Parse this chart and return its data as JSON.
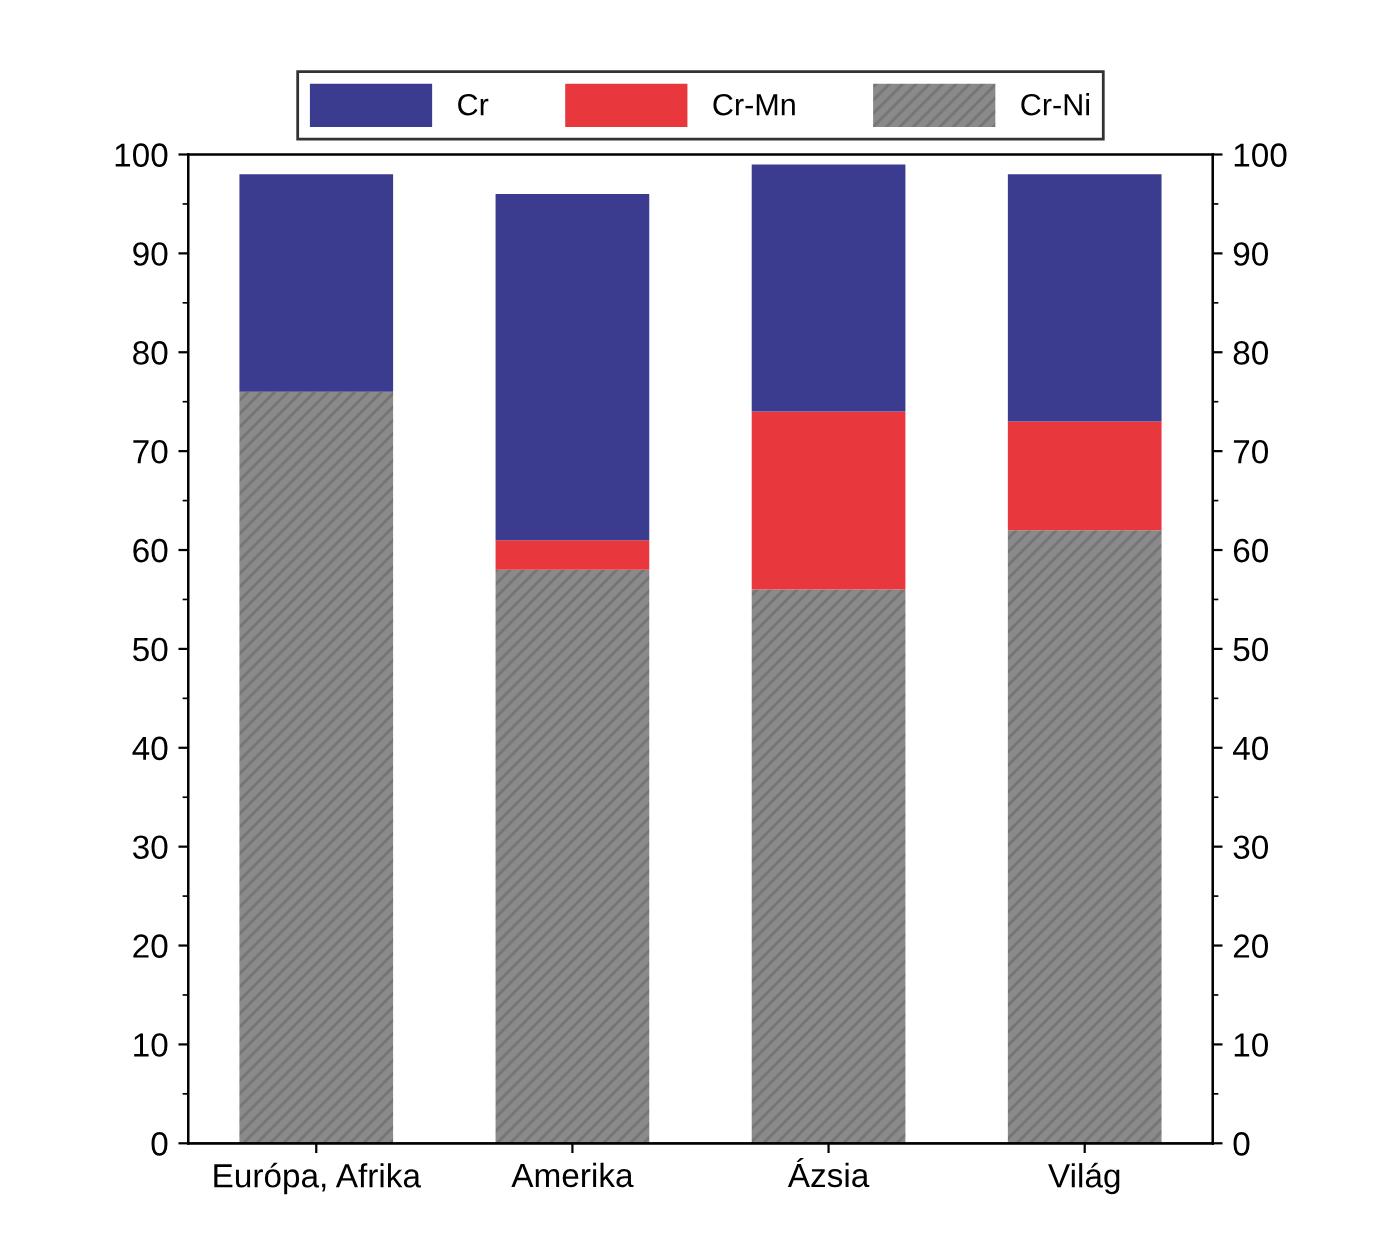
{
  "chart_data": {
    "type": "bar",
    "stacked": true,
    "categories": [
      "Európa, Afrika",
      "Amerika",
      "Ázsia",
      "Világ"
    ],
    "series": [
      {
        "name": "Cr-Ni",
        "color": "#8a8a8a",
        "values": [
          76,
          58,
          56,
          62
        ]
      },
      {
        "name": "Cr-Mn",
        "color": "#e8383d",
        "values": [
          0,
          3,
          18,
          11
        ]
      },
      {
        "name": "Cr",
        "color": "#3b3b8f",
        "values": [
          22,
          35,
          25,
          25
        ]
      }
    ],
    "ylim": [
      0,
      100
    ],
    "yticks": [
      0,
      10,
      20,
      30,
      40,
      50,
      60,
      70,
      80,
      90,
      100
    ],
    "y2lim": [
      0,
      100
    ],
    "y2ticks": [
      0,
      10,
      20,
      30,
      40,
      50,
      60,
      70,
      80,
      90,
      100
    ],
    "legend": "top",
    "grid": false
  }
}
